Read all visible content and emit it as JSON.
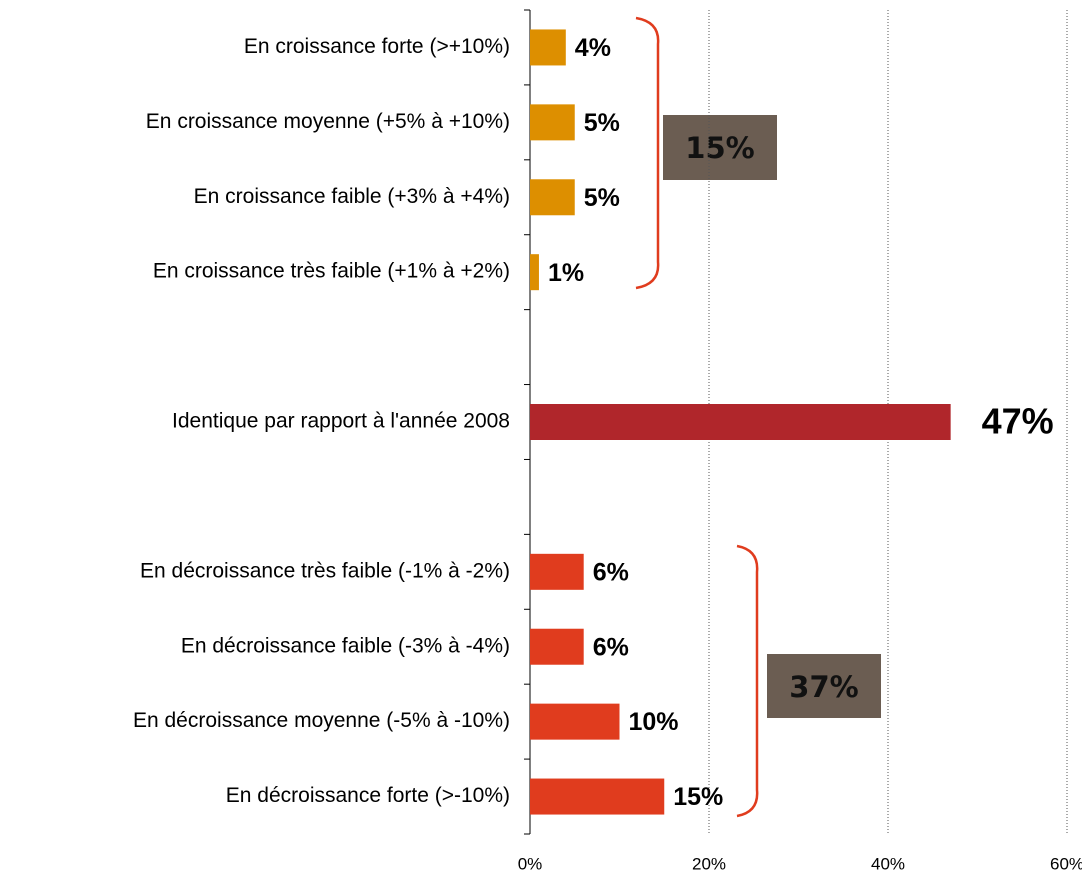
{
  "chart_data": {
    "type": "bar",
    "orientation": "horizontal",
    "categories": [
      "En croissance forte (>+10%)",
      "En croissance moyenne (+5% à +10%)",
      "En croissance faible (+3% à +4%)",
      "En croissance très faible (+1% à +2%)",
      null,
      "Identique par rapport à l'année 2008",
      null,
      "En décroissance très faible (-1% à -2%)",
      "En décroissance faible (-3% à -4%)",
      "En décroissance moyenne (-5% à -10%)",
      "En décroissance forte (>-10%)"
    ],
    "values": [
      4,
      5,
      5,
      1,
      null,
      47,
      null,
      6,
      6,
      10,
      15
    ],
    "value_labels": [
      "4%",
      "5%",
      "5%",
      "1%",
      null,
      "47%",
      null,
      "6%",
      "6%",
      "10%",
      "15%"
    ],
    "colors": [
      "#dd8f00",
      "#dd8f00",
      "#dd8f00",
      "#dd8f00",
      null,
      "#b0262b",
      null,
      "#e03c1e",
      "#e03c1e",
      "#e03c1e",
      "#e03c1e"
    ],
    "xlim": [
      0,
      60
    ],
    "xticks": [
      {
        "value": 0,
        "label": "0%"
      },
      {
        "value": 20,
        "label": "20%"
      },
      {
        "value": 40,
        "label": "40%"
      },
      {
        "value": 60,
        "label": "60%"
      }
    ],
    "grid": true,
    "annotations": [
      "15%",
      "37%"
    ]
  }
}
